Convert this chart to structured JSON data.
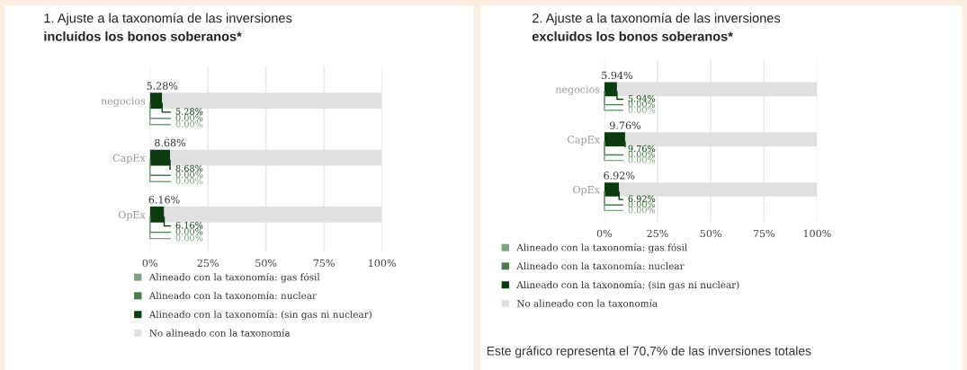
{
  "chart_data": [
    {
      "type": "bar",
      "orientation": "horizontal",
      "stacked": true,
      "title": "1. Ajuste a la taxonomía de las inversiones",
      "subtitle": "incluidos los bonos soberanos*",
      "categories": [
        "negocios",
        "CapEx",
        "OpEx"
      ],
      "series": [
        {
          "name": "Alineado con la taxonomía: gas fósil",
          "color": "#7fa382",
          "values": [
            0,
            0,
            0
          ]
        },
        {
          "name": "Alineado con la taxonomía: nuclear",
          "color": "#4a7a4e",
          "values": [
            0,
            0,
            0
          ]
        },
        {
          "name": "Alineado con la taxonomía: (sin gas ni nuclear)",
          "color": "#0d3b10",
          "values": [
            5.28,
            8.68,
            6.16
          ]
        },
        {
          "name": "No alineado con la taxonomía",
          "color": "#e0e0e0",
          "values": [
            94.7,
            91.3,
            93.8
          ]
        }
      ],
      "annotations": [
        {
          "text": "5.28%",
          "x": 5.28,
          "y": "negocios"
        },
        {
          "text": "5.28%",
          "x": 5.28,
          "y": "negocios"
        },
        {
          "text": "0.00%",
          "x": 0,
          "y": "negocios"
        },
        {
          "text": "0.00%",
          "x": 0,
          "y": "negocios"
        },
        {
          "text": "8.68%",
          "x": 8.68,
          "y": "CapEx"
        },
        {
          "text": "8.68%",
          "x": 8.68,
          "y": "CapEx"
        },
        {
          "text": "0.00%",
          "x": 0,
          "y": "CapEx"
        },
        {
          "text": "0.00%",
          "x": 0,
          "y": "CapEx"
        },
        {
          "text": "6.16%",
          "x": 6.16,
          "y": "OpEx"
        },
        {
          "text": "6.16%",
          "x": 6.16,
          "y": "OpEx"
        },
        {
          "text": "0.00%",
          "x": 0,
          "y": "OpEx"
        },
        {
          "text": "0.00%",
          "x": 0,
          "y": "OpEx"
        }
      ],
      "xlim": [
        0,
        100
      ],
      "xticks": [
        {
          "value": 0,
          "label": "0%"
        },
        {
          "value": 25,
          "label": "25%"
        },
        {
          "value": 50,
          "label": "50%"
        },
        {
          "value": 75,
          "label": "75%"
        },
        {
          "value": 100,
          "label": "100%"
        }
      ],
      "grid": "x",
      "legend": "bottom"
    },
    {
      "type": "bar",
      "orientation": "horizontal",
      "stacked": true,
      "title": "2. Ajuste a la taxonomía de las inversiones",
      "subtitle": "excluidos los bonos soberanos*",
      "categories": [
        "negocios",
        "CapEx",
        "OpEx"
      ],
      "series": [
        {
          "name": "Alineado con la taxonomía: gas fósil",
          "color": "#7fa382",
          "values": [
            0,
            0,
            0
          ]
        },
        {
          "name": "Alineado con la taxonomía: nuclear",
          "color": "#4a7a4e",
          "values": [
            0,
            0,
            0
          ]
        },
        {
          "name": "Alineado con la taxonomía: (sin gas ni nuclear)",
          "color": "#0d3b10",
          "values": [
            5.94,
            9.76,
            6.92
          ]
        },
        {
          "name": "No alineado con la taxonomía",
          "color": "#e0e0e0",
          "values": [
            94.1,
            90.2,
            93.1
          ]
        }
      ],
      "annotations": [
        {
          "text": "5.94%",
          "x": 5.94,
          "y": "negocios"
        },
        {
          "text": "5.94%",
          "x": 5.94,
          "y": "negocios"
        },
        {
          "text": "0.00%",
          "x": 0,
          "y": "negocios"
        },
        {
          "text": "0.00%",
          "x": 0,
          "y": "negocios"
        },
        {
          "text": "9.76%",
          "x": 9.76,
          "y": "CapEx"
        },
        {
          "text": "9.76%",
          "x": 9.76,
          "y": "CapEx"
        },
        {
          "text": "0.00%",
          "x": 0,
          "y": "CapEx"
        },
        {
          "text": "0.00%",
          "x": 0,
          "y": "CapEx"
        },
        {
          "text": "6.92%",
          "x": 6.92,
          "y": "OpEx"
        },
        {
          "text": "6.92%",
          "x": 6.92,
          "y": "OpEx"
        },
        {
          "text": "0.00%",
          "x": 0,
          "y": "OpEx"
        },
        {
          "text": "0.00%",
          "x": 0,
          "y": "OpEx"
        },
        "Este gráfico representa el 70,7% de las inversiones totales"
      ],
      "xlim": [
        0,
        100
      ],
      "xticks": [
        {
          "value": 0,
          "label": "0%"
        },
        {
          "value": 25,
          "label": "25%"
        },
        {
          "value": 50,
          "label": "50%"
        },
        {
          "value": 75,
          "label": "75%"
        },
        {
          "value": 100,
          "label": "100%"
        }
      ],
      "grid": "x",
      "legend": "bottom"
    }
  ]
}
